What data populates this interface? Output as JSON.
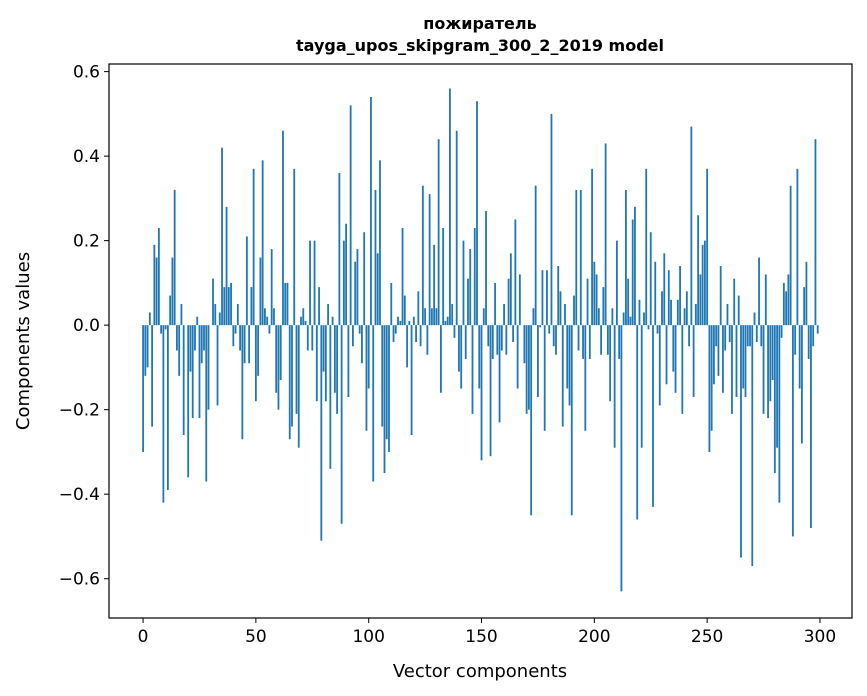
{
  "chart_data": {
    "type": "bar",
    "title": [
      "пожиратель",
      "tayga_upos_skipgram_300_2_2019 model"
    ],
    "xlabel": "Vector components",
    "ylabel": "Components values",
    "xlim": [
      -15.1,
      314.2
    ],
    "ylim": [
      -0.693,
      0.618
    ],
    "xticks": [
      0,
      50,
      100,
      150,
      200,
      250,
      300
    ],
    "xtick_labels": [
      "0",
      "50",
      "100",
      "150",
      "200",
      "250",
      "300"
    ],
    "yticks": [
      0.6,
      0.4,
      0.2,
      0.0,
      -0.2,
      -0.4,
      -0.6
    ],
    "ytick_labels": [
      "0.6",
      "0.4",
      "0.2",
      "0.0",
      "−0.2",
      "−0.4",
      "−0.6"
    ],
    "grid": false,
    "bar_color": "#1f77b4",
    "values": [
      -0.3,
      -0.12,
      -0.1,
      0.03,
      -0.24,
      0.19,
      0.16,
      0.23,
      -0.02,
      -0.42,
      -0.01,
      -0.39,
      0.07,
      0.16,
      0.32,
      -0.06,
      -0.12,
      0.05,
      -0.26,
      0.0,
      -0.36,
      -0.11,
      -0.22,
      -0.06,
      0.02,
      -0.22,
      -0.09,
      -0.06,
      -0.37,
      -0.2,
      0.0,
      0.11,
      0.05,
      -0.19,
      0.03,
      0.42,
      0.09,
      0.28,
      0.09,
      0.1,
      -0.05,
      -0.02,
      0.05,
      -0.06,
      -0.27,
      -0.09,
      0.21,
      -0.09,
      0.09,
      0.37,
      -0.18,
      -0.12,
      0.16,
      0.39,
      0.04,
      0.02,
      -0.02,
      0.18,
      0.04,
      -0.16,
      -0.2,
      -0.13,
      0.46,
      0.1,
      0.1,
      -0.27,
      -0.24,
      0.37,
      -0.21,
      -0.29,
      0.02,
      0.04,
      0.01,
      -0.06,
      0.2,
      -0.06,
      0.2,
      -0.18,
      0.09,
      -0.51,
      -0.11,
      -0.18,
      0.05,
      -0.34,
      0.02,
      -0.16,
      -0.21,
      0.36,
      -0.47,
      0.2,
      0.24,
      -0.17,
      0.52,
      -0.05,
      0.15,
      0.18,
      -0.02,
      -0.09,
      0.22,
      -0.25,
      -0.15,
      0.54,
      -0.37,
      0.32,
      0.17,
      0.39,
      -0.24,
      -0.35,
      -0.27,
      -0.3,
      0.1,
      -0.04,
      -0.02,
      0.02,
      0.01,
      0.23,
      0.07,
      -0.1,
      0.01,
      -0.26,
      0.02,
      -0.04,
      0.08,
      -0.05,
      0.33,
      0.04,
      -0.07,
      0.31,
      0.04,
      0.19,
      0.04,
      0.44,
      -0.16,
      0.23,
      0.01,
      0.02,
      0.56,
      0.05,
      -0.03,
      0.46,
      -0.11,
      -0.15,
      0.2,
      -0.08,
      0.11,
      0.18,
      -0.21,
      0.23,
      0.53,
      -0.15,
      -0.32,
      0.04,
      0.27,
      -0.05,
      -0.31,
      -0.08,
      0.1,
      -0.07,
      -0.23,
      -0.06,
      0.05,
      -0.07,
      0.11,
      0.17,
      -0.04,
      0.25,
      -0.15,
      0.12,
      0.0,
      -0.09,
      -0.21,
      -0.2,
      -0.45,
      0.04,
      0.33,
      -0.17,
      -0.005,
      0.13,
      -0.25,
      0.13,
      -0.02,
      0.5,
      -0.05,
      -0.07,
      0.14,
      0.08,
      -0.24,
      0.05,
      -0.15,
      -0.19,
      -0.45,
      0.07,
      0.32,
      -0.06,
      0.32,
      -0.08,
      -0.25,
      0.11,
      -0.08,
      0.37,
      0.15,
      0.12,
      0.04,
      -0.07,
      0.09,
      0.43,
      -0.07,
      -0.18,
      0.04,
      -0.29,
      0.2,
      -0.08,
      -0.63,
      0.03,
      0.32,
      0.11,
      0.02,
      0.25,
      0.28,
      -0.46,
      0.06,
      -0.29,
      0.03,
      0.37,
      -0.01,
      0.22,
      -0.43,
      0.15,
      -0.02,
      -0.19,
      0.08,
      0.17,
      -0.14,
      0.13,
      0.06,
      -0.11,
      -0.16,
      0.06,
      0.14,
      -0.21,
      0.04,
      0.08,
      -0.05,
      0.47,
      -0.17,
      0.05,
      0.26,
      0.12,
      0.19,
      0.2,
      0.37,
      -0.3,
      -0.25,
      -0.14,
      -0.05,
      -0.12,
      0.14,
      -0.16,
      -0.06,
      0.05,
      -0.04,
      -0.21,
      0.11,
      -0.17,
      0.07,
      -0.55,
      -0.15,
      -0.17,
      -0.05,
      -0.05,
      -0.57,
      0.03,
      -0.04,
      0.16,
      -0.05,
      -0.21,
      0.12,
      -0.22,
      -0.18,
      -0.13,
      -0.35,
      -0.29,
      -0.42,
      -0.03,
      0.1,
      0.08,
      0.12,
      0.33,
      -0.5,
      -0.07,
      0.37,
      -0.15,
      -0.28,
      0.09,
      0.15,
      -0.08,
      -0.48,
      -0.05,
      0.44,
      -0.02
    ]
  }
}
